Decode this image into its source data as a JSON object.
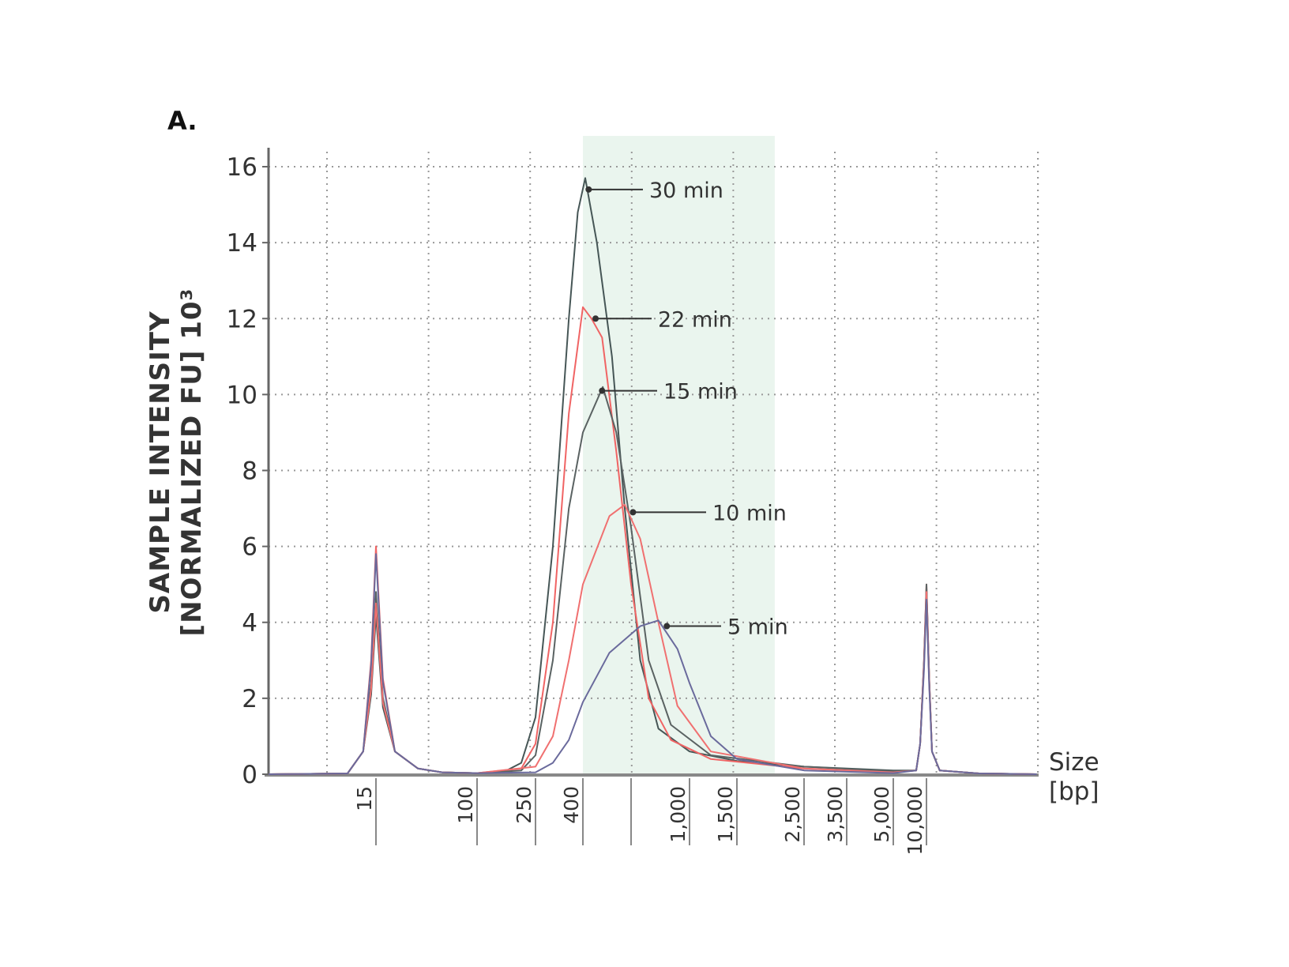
{
  "chart_data": {
    "type": "line",
    "panel_label": "A.",
    "ylabel_lines": [
      "SAMPLE INTENSITY",
      "[NORMALIZED FU] 10³"
    ],
    "xlabel_lines": [
      "Size",
      "[bp]"
    ],
    "ylim": [
      0,
      16
    ],
    "yticks": [
      0,
      2,
      4,
      6,
      8,
      10,
      12,
      14,
      16
    ],
    "xlim": [
      2,
      100000
    ],
    "xscale": "non-linear (electropherogram size ladder)",
    "xticks": [
      {
        "value": 15,
        "label": "15"
      },
      {
        "value": 100,
        "label": "100"
      },
      {
        "value": 250,
        "label": "250"
      },
      {
        "value": 400,
        "label": "400"
      },
      {
        "value": 600,
        "label": ""
      },
      {
        "value": 1000,
        "label": "1,000"
      },
      {
        "value": 1500,
        "label": "1,500"
      },
      {
        "value": 2500,
        "label": "2,500"
      },
      {
        "value": 3500,
        "label": "3,500"
      },
      {
        "value": 5000,
        "label": "5,000"
      },
      {
        "value": 10000,
        "label": "10,000"
      }
    ],
    "grid": true,
    "highlight_region": {
      "from": 400,
      "to": 2000,
      "color": "#eaf5ee"
    },
    "series": [
      {
        "name": "30 min",
        "color": "#465656",
        "lower_marker": 4.2,
        "upper_marker": 4.9,
        "points": [
          [
            150,
            0.05
          ],
          [
            200,
            0.3
          ],
          [
            250,
            1.5
          ],
          [
            297,
            6
          ],
          [
            348,
            12
          ],
          [
            380,
            14.8
          ],
          [
            408,
            15.7
          ],
          [
            450,
            14
          ],
          [
            511,
            11
          ],
          [
            569,
            7
          ],
          [
            650,
            3
          ],
          [
            762,
            1.2
          ],
          [
            1000,
            0.6
          ],
          [
            1500,
            0.35
          ],
          [
            2500,
            0.2
          ],
          [
            5000,
            0.1
          ]
        ],
        "label_at": [
          420,
          15.4
        ]
      },
      {
        "name": "22 min",
        "color": "#f06464",
        "lower_marker": 6.0,
        "upper_marker": 5.0,
        "points": [
          [
            200,
            0.15
          ],
          [
            250,
            0.8
          ],
          [
            297,
            4
          ],
          [
            348,
            9.5
          ],
          [
            400,
            12.3
          ],
          [
            430,
            12
          ],
          [
            470,
            11.5
          ],
          [
            530,
            8.5
          ],
          [
            600,
            5
          ],
          [
            700,
            2
          ],
          [
            850,
            0.9
          ],
          [
            1200,
            0.4
          ],
          [
            2500,
            0.15
          ],
          [
            5000,
            0.05
          ]
        ],
        "label_at": [
          445,
          12.0
        ]
      },
      {
        "name": "15 min",
        "color": "#5a6262",
        "lower_marker": 4.8,
        "upper_marker": 5.0,
        "points": [
          [
            200,
            0.1
          ],
          [
            250,
            0.5
          ],
          [
            297,
            3
          ],
          [
            348,
            7
          ],
          [
            400,
            9
          ],
          [
            473,
            10.2
          ],
          [
            530,
            9
          ],
          [
            600,
            6.5
          ],
          [
            700,
            3
          ],
          [
            850,
            1.3
          ],
          [
            1200,
            0.5
          ],
          [
            2500,
            0.2
          ],
          [
            5000,
            0.08
          ]
        ],
        "label_at": [
          470,
          10.1
        ]
      },
      {
        "name": "10 min",
        "color": "#f07070",
        "lower_marker": 4.5,
        "upper_marker": 4.8,
        "points": [
          [
            250,
            0.2
          ],
          [
            297,
            1
          ],
          [
            348,
            3
          ],
          [
            400,
            5
          ],
          [
            500,
            6.8
          ],
          [
            569,
            7.1
          ],
          [
            650,
            6.2
          ],
          [
            762,
            4
          ],
          [
            900,
            1.8
          ],
          [
            1200,
            0.6
          ],
          [
            2500,
            0.15
          ],
          [
            5000,
            0.05
          ]
        ],
        "label_at": [
          610,
          6.9
        ]
      },
      {
        "name": "5 min",
        "color": "#6a6a9c",
        "lower_marker": 5.8,
        "upper_marker": 4.6,
        "points": [
          [
            250,
            0.05
          ],
          [
            297,
            0.3
          ],
          [
            348,
            0.9
          ],
          [
            400,
            1.9
          ],
          [
            500,
            3.2
          ],
          [
            650,
            3.9
          ],
          [
            762,
            4.05
          ],
          [
            900,
            3.3
          ],
          [
            1000,
            2.4
          ],
          [
            1200,
            1.0
          ],
          [
            1500,
            0.4
          ],
          [
            2500,
            0.1
          ],
          [
            5000,
            0.03
          ]
        ],
        "label_at": [
          820,
          3.9
        ]
      }
    ]
  }
}
